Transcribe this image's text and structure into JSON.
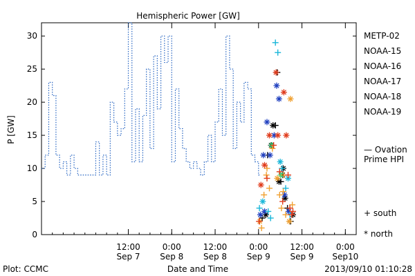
{
  "chart_data": {
    "type": "scatter",
    "title": "Hemispheric Power [GW]",
    "xlabel": "Date and Time",
    "ylabel": "P [GW]",
    "xlim": [
      "2013-09-06T12:00",
      "2013-09-10T03:00"
    ],
    "ylim": [
      0,
      32
    ],
    "yticks": [
      0,
      5,
      10,
      15,
      20,
      25,
      30
    ],
    "xticks": [
      {
        "x": "2013-09-07T12:00",
        "time": "12:00",
        "date": "Sep 7"
      },
      {
        "x": "2013-09-08T00:00",
        "time": "0:00",
        "date": "Sep 8"
      },
      {
        "x": "2013-09-08T12:00",
        "time": "12:00",
        "date": "Sep 8"
      },
      {
        "x": "2013-09-09T00:00",
        "time": "0:00",
        "date": "Sep 9"
      },
      {
        "x": "2013-09-09T12:00",
        "time": "12:00",
        "date": "Sep 9"
      },
      {
        "x": "2013-09-10T00:00",
        "time": "0:00",
        "date": "Sep10"
      }
    ],
    "grid": false,
    "footer_left": "Plot: CCMC",
    "footer_right": "2013/09/10 01:10:28",
    "legend": {
      "placement": "right",
      "satellites": [
        {
          "name": "METP-02",
          "color": "#000000"
        },
        {
          "name": "NOAA-15",
          "color": "#1f3fbf"
        },
        {
          "name": "NOAA-16",
          "color": "#19b6d9"
        },
        {
          "name": "NOAA-17",
          "color": "#33e07a"
        },
        {
          "name": "NOAA-18",
          "color": "#f0a030"
        },
        {
          "name": "NOAA-19",
          "color": "#e03a1a"
        }
      ],
      "ovation_line1": "— Ovation",
      "ovation_line2": "Prime HPI",
      "ovation_color": "#2060c0",
      "south_label": "+ south",
      "north_label": "* north"
    },
    "ovation_series": {
      "name": "Ovation Prime HPI",
      "color": "#2060c0",
      "style": "dotted-step",
      "points": [
        [
          "2013-09-06T12:00",
          10
        ],
        [
          "2013-09-06T13:00",
          12
        ],
        [
          "2013-09-06T14:00",
          23
        ],
        [
          "2013-09-06T15:00",
          21
        ],
        [
          "2013-09-06T16:00",
          12
        ],
        [
          "2013-09-06T17:00",
          10
        ],
        [
          "2013-09-06T18:00",
          11
        ],
        [
          "2013-09-06T19:00",
          9
        ],
        [
          "2013-09-06T20:00",
          12
        ],
        [
          "2013-09-06T21:00",
          10
        ],
        [
          "2013-09-06T22:00",
          9
        ],
        [
          "2013-09-07T02:00",
          9
        ],
        [
          "2013-09-07T03:00",
          14
        ],
        [
          "2013-09-07T04:00",
          9
        ],
        [
          "2013-09-07T05:00",
          12
        ],
        [
          "2013-09-07T06:00",
          9
        ],
        [
          "2013-09-07T07:00",
          20
        ],
        [
          "2013-09-07T08:00",
          17
        ],
        [
          "2013-09-07T09:00",
          15
        ],
        [
          "2013-09-07T10:00",
          16
        ],
        [
          "2013-09-07T11:00",
          22
        ],
        [
          "2013-09-07T12:00",
          32
        ],
        [
          "2013-09-07T13:00",
          11
        ],
        [
          "2013-09-07T14:00",
          19
        ],
        [
          "2013-09-07T15:00",
          11
        ],
        [
          "2013-09-07T16:00",
          18
        ],
        [
          "2013-09-07T17:00",
          25
        ],
        [
          "2013-09-07T18:00",
          13
        ],
        [
          "2013-09-07T19:00",
          27
        ],
        [
          "2013-09-07T20:00",
          19
        ],
        [
          "2013-09-07T21:00",
          30
        ],
        [
          "2013-09-07T22:00",
          26
        ],
        [
          "2013-09-07T23:00",
          30
        ],
        [
          "2013-09-08T00:00",
          11
        ],
        [
          "2013-09-08T01:00",
          22
        ],
        [
          "2013-09-08T02:00",
          16
        ],
        [
          "2013-09-08T03:00",
          13
        ],
        [
          "2013-09-08T04:00",
          11
        ],
        [
          "2013-09-08T05:00",
          10
        ],
        [
          "2013-09-08T06:00",
          11
        ],
        [
          "2013-09-08T07:00",
          10
        ],
        [
          "2013-09-08T08:00",
          9
        ],
        [
          "2013-09-08T09:00",
          11
        ],
        [
          "2013-09-08T10:00",
          15
        ],
        [
          "2013-09-08T11:00",
          11
        ],
        [
          "2013-09-08T12:00",
          17
        ],
        [
          "2013-09-08T13:00",
          22
        ],
        [
          "2013-09-08T14:00",
          15
        ],
        [
          "2013-09-08T15:00",
          30
        ],
        [
          "2013-09-08T16:00",
          25
        ],
        [
          "2013-09-08T17:00",
          13
        ],
        [
          "2013-09-08T18:00",
          20
        ],
        [
          "2013-09-08T19:00",
          17
        ],
        [
          "2013-09-08T20:00",
          23
        ],
        [
          "2013-09-08T21:00",
          22
        ],
        [
          "2013-09-08T22:00",
          12
        ],
        [
          "2013-09-08T23:00",
          11
        ],
        [
          "2013-09-09T00:00",
          9
        ]
      ]
    },
    "series": [
      {
        "name": "METP-02",
        "color": "#000000",
        "points": [
          {
            "x": "2013-09-09T01:00",
            "y": 2.5,
            "m": "south"
          },
          {
            "x": "2013-09-09T02:30",
            "y": 12,
            "m": "south"
          },
          {
            "x": "2013-09-09T03:30",
            "y": 13.5,
            "m": "north"
          },
          {
            "x": "2013-09-09T04:00",
            "y": 16.5,
            "m": "north"
          },
          {
            "x": "2013-09-09T04:40",
            "y": 16.5,
            "m": "south"
          },
          {
            "x": "2013-09-09T05:10",
            "y": 24.5,
            "m": "south"
          },
          {
            "x": "2013-09-09T05:40",
            "y": 8,
            "m": "north"
          },
          {
            "x": "2013-09-09T06:10",
            "y": 8,
            "m": "south"
          },
          {
            "x": "2013-09-09T06:40",
            "y": 9,
            "m": "north"
          },
          {
            "x": "2013-09-09T07:20",
            "y": 5.5,
            "m": "north"
          },
          {
            "x": "2013-09-09T08:00",
            "y": 4,
            "m": "south"
          },
          {
            "x": "2013-09-09T08:50",
            "y": 2,
            "m": "south"
          },
          {
            "x": "2013-09-09T09:30",
            "y": 3,
            "m": "north"
          },
          {
            "x": "2013-09-09T02:00",
            "y": 3,
            "m": "north"
          },
          {
            "x": "2013-09-09T06:50",
            "y": 10,
            "m": "north"
          }
        ]
      },
      {
        "name": "NOAA-15",
        "color": "#1f3fbf",
        "points": [
          {
            "x": "2013-09-09T00:30",
            "y": 3,
            "m": "north"
          },
          {
            "x": "2013-09-09T01:20",
            "y": 12,
            "m": "north"
          },
          {
            "x": "2013-09-09T02:20",
            "y": 17,
            "m": "north"
          },
          {
            "x": "2013-09-09T03:10",
            "y": 12,
            "m": "north"
          },
          {
            "x": "2013-09-09T04:20",
            "y": 15,
            "m": "north"
          },
          {
            "x": "2013-09-09T05:00",
            "y": 22.5,
            "m": "north"
          },
          {
            "x": "2013-09-09T05:40",
            "y": 20.5,
            "m": "north"
          },
          {
            "x": "2013-09-09T07:10",
            "y": 6,
            "m": "north"
          },
          {
            "x": "2013-09-09T08:20",
            "y": 3.5,
            "m": "north"
          },
          {
            "x": "2013-09-09T01:40",
            "y": 3.5,
            "m": "north"
          }
        ]
      },
      {
        "name": "NOAA-16",
        "color": "#19b6d9",
        "points": [
          {
            "x": "2013-09-09T00:15",
            "y": 4,
            "m": "south"
          },
          {
            "x": "2013-09-09T01:10",
            "y": 5,
            "m": "north"
          },
          {
            "x": "2013-09-09T03:20",
            "y": 2.5,
            "m": "south"
          },
          {
            "x": "2013-09-09T04:40",
            "y": 29,
            "m": "south"
          },
          {
            "x": "2013-09-09T05:20",
            "y": 27.5,
            "m": "south"
          },
          {
            "x": "2013-09-09T06:00",
            "y": 11,
            "m": "north"
          },
          {
            "x": "2013-09-09T06:30",
            "y": 10,
            "m": "south"
          },
          {
            "x": "2013-09-09T07:30",
            "y": 7,
            "m": "south"
          },
          {
            "x": "2013-09-09T08:10",
            "y": 8.5,
            "m": "north"
          },
          {
            "x": "2013-09-09T08:40",
            "y": 3,
            "m": "south"
          },
          {
            "x": "2013-09-09T02:40",
            "y": 3.5,
            "m": "south"
          }
        ]
      },
      {
        "name": "NOAA-17",
        "color": "#33e07a",
        "points": [
          {
            "x": "2013-09-09T03:40",
            "y": 13.5,
            "m": "north"
          },
          {
            "x": "2013-09-09T06:10",
            "y": 9,
            "m": "north"
          }
        ]
      },
      {
        "name": "NOAA-18",
        "color": "#f0a030",
        "points": [
          {
            "x": "2013-09-09T00:20",
            "y": 2,
            "m": "north"
          },
          {
            "x": "2013-09-09T00:50",
            "y": 1,
            "m": "south"
          },
          {
            "x": "2013-09-09T01:30",
            "y": 6,
            "m": "south"
          },
          {
            "x": "2013-09-09T02:10",
            "y": 9,
            "m": "south"
          },
          {
            "x": "2013-09-09T03:00",
            "y": 7,
            "m": "south"
          },
          {
            "x": "2013-09-09T03:50",
            "y": 13,
            "m": "south"
          },
          {
            "x": "2013-09-09T05:10",
            "y": 8.5,
            "m": "north"
          },
          {
            "x": "2013-09-09T05:50",
            "y": 6,
            "m": "south"
          },
          {
            "x": "2013-09-09T06:20",
            "y": 4,
            "m": "south"
          },
          {
            "x": "2013-09-09T06:50",
            "y": 6.5,
            "m": "south"
          },
          {
            "x": "2013-09-09T07:30",
            "y": 3,
            "m": "south"
          },
          {
            "x": "2013-09-09T08:30",
            "y": 2,
            "m": "north"
          },
          {
            "x": "2013-09-09T08:50",
            "y": 20.5,
            "m": "north"
          },
          {
            "x": "2013-09-09T09:20",
            "y": 4.5,
            "m": "south"
          },
          {
            "x": "2013-09-09T02:20",
            "y": 10,
            "m": "south"
          },
          {
            "x": "2013-09-09T07:00",
            "y": 9,
            "m": "south"
          }
        ]
      },
      {
        "name": "NOAA-19",
        "color": "#e03a1a",
        "points": [
          {
            "x": "2013-09-09T00:10",
            "y": 2,
            "m": "south"
          },
          {
            "x": "2013-09-09T00:40",
            "y": 7.5,
            "m": "north"
          },
          {
            "x": "2013-09-09T01:40",
            "y": 10.5,
            "m": "north"
          },
          {
            "x": "2013-09-09T02:20",
            "y": 8.5,
            "m": "south"
          },
          {
            "x": "2013-09-09T03:00",
            "y": 15,
            "m": "north"
          },
          {
            "x": "2013-09-09T04:10",
            "y": 13.5,
            "m": "south"
          },
          {
            "x": "2013-09-09T04:50",
            "y": 24.5,
            "m": "north"
          },
          {
            "x": "2013-09-09T05:20",
            "y": 15,
            "m": "north"
          },
          {
            "x": "2013-09-09T05:50",
            "y": 9.5,
            "m": "south"
          },
          {
            "x": "2013-09-09T06:40",
            "y": 5,
            "m": "south"
          },
          {
            "x": "2013-09-09T07:00",
            "y": 21.5,
            "m": "north"
          },
          {
            "x": "2013-09-09T07:40",
            "y": 15,
            "m": "north"
          },
          {
            "x": "2013-09-09T08:10",
            "y": 9,
            "m": "south"
          },
          {
            "x": "2013-09-09T08:40",
            "y": 4,
            "m": "south"
          },
          {
            "x": "2013-09-09T09:10",
            "y": 3,
            "m": "south"
          },
          {
            "x": "2013-09-09T09:30",
            "y": 3.5,
            "m": "south"
          }
        ]
      }
    ]
  }
}
